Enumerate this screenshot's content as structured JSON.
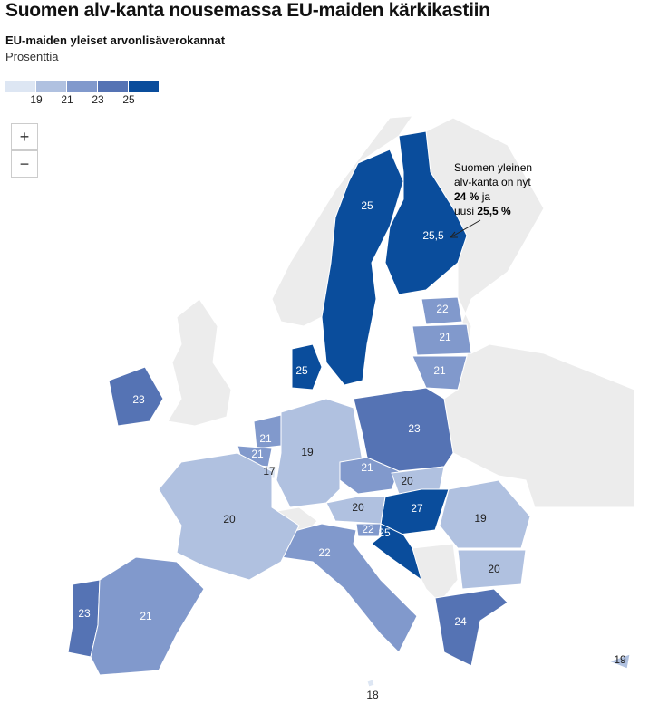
{
  "header": {
    "title": "Suomen alv-kanta nousemassa EU-maiden kärkikastiin",
    "subtitle": "EU-maiden yleiset arvonlisäverokannat",
    "unit": "Prosenttia"
  },
  "legend": {
    "ticks": [
      19,
      21,
      23,
      25
    ],
    "colors": [
      "#dde6f3",
      "#b0c1e0",
      "#8199cc",
      "#5573b4",
      "#0a4d9c"
    ]
  },
  "zoom": [
    "+",
    "−"
  ],
  "regions": [
    {
      "value": 25
    },
    {
      "value": 25.5,
      "label": "25,5"
    },
    {
      "value": 22
    },
    {
      "value": 21
    },
    {
      "value": 21
    },
    {
      "value": 25
    },
    {
      "value": 23
    },
    {
      "value": 21
    },
    {
      "value": 21
    },
    {
      "value": 17
    },
    {
      "value": 19
    },
    {
      "value": 23
    },
    {
      "value": 21
    },
    {
      "value": 20
    },
    {
      "value": 27
    },
    {
      "value": 20
    },
    {
      "value": 19
    },
    {
      "value": 20
    },
    {
      "value": 22
    },
    {
      "value": 25
    },
    {
      "value": 22
    },
    {
      "value": 23
    },
    {
      "value": 21
    },
    {
      "value": 24
    },
    {
      "value": 19
    },
    {
      "value": 18
    },
    {
      "value": 20
    }
  ],
  "annotation": {
    "line1": "Suomen yleinen",
    "line2": "alv-kanta on nyt",
    "line3": [
      "24 %",
      " ja"
    ],
    "line4": [
      "uusi ",
      "25,5 %"
    ]
  }
}
